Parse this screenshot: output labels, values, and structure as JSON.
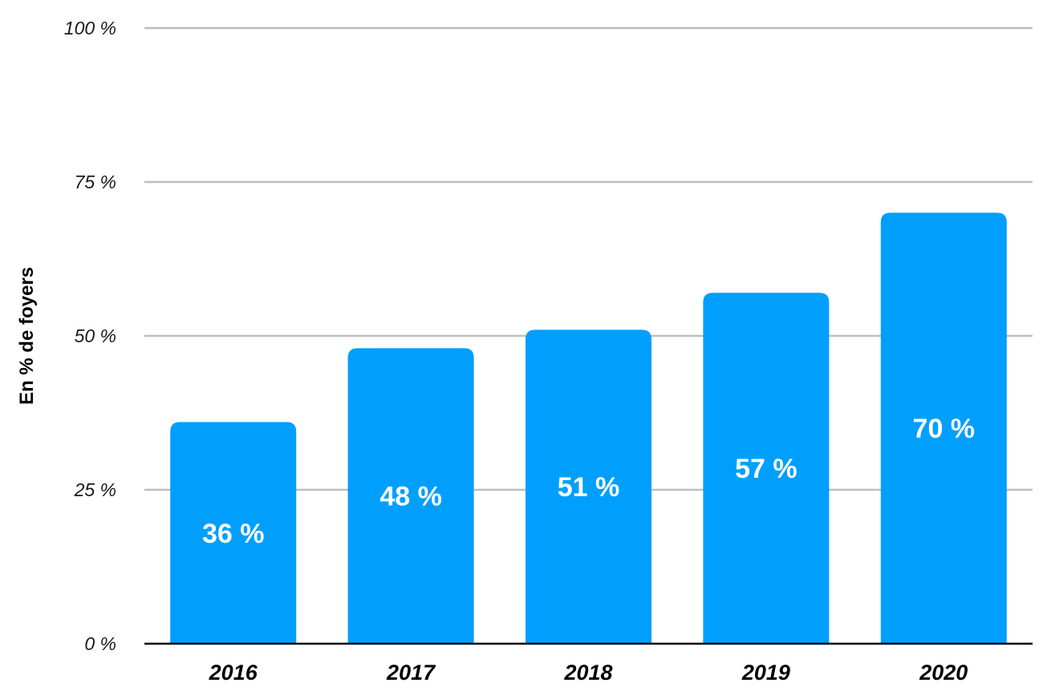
{
  "chart_data": {
    "type": "bar",
    "categories": [
      "2016",
      "2017",
      "2018",
      "2019",
      "2020"
    ],
    "values": [
      36,
      48,
      51,
      57,
      70
    ],
    "data_labels": [
      "36 %",
      "48 %",
      "51 %",
      "57 %",
      "70 %"
    ],
    "title": "",
    "xlabel": "",
    "ylabel": "En % de foyers",
    "ylim": [
      0,
      100
    ],
    "yticks": [
      0,
      25,
      50,
      75,
      100
    ],
    "ytick_labels": [
      "0 %",
      "25 %",
      "50 %",
      "75 %",
      "100 %"
    ],
    "grid": true,
    "legend": "none",
    "colors": {
      "bar": "#009ffd",
      "grid": "#bdbdbd",
      "axis": "#000000",
      "data_label": "#ffffff"
    }
  }
}
